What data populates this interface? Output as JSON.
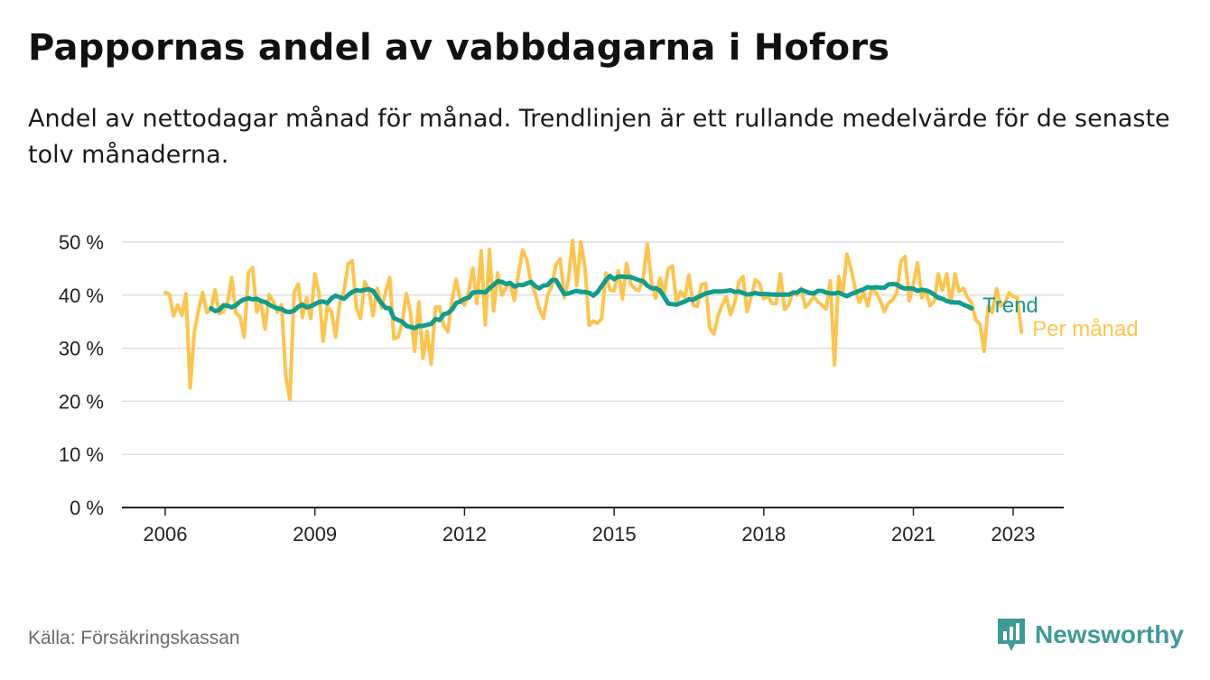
{
  "title": "Pappornas andel av vabbdagarna i Hofors",
  "subtitle": "Andel av nettodagar månad för månad. Trendlinjen är ett rullande medelvärde för de senaste tolv månaderna.",
  "source": "Källa: Försäkringskassan",
  "brand": {
    "name": "Newsworthy",
    "icon": "newsworthy-logo-icon"
  },
  "colors": {
    "trend": "#129c8e",
    "monthly": "#ffc44d",
    "axis": "#222222",
    "grid": "#dddddd",
    "brand": "#3f9a96"
  },
  "chart_data": {
    "type": "line",
    "x_axis": {
      "type": "time",
      "ticks": [
        "2006",
        "2009",
        "2012",
        "2015",
        "2018",
        "2021",
        "2023"
      ]
    },
    "y_axis": {
      "ylim": [
        0,
        50
      ],
      "ticks": [
        "0 %",
        "10 %",
        "20 %",
        "30 %",
        "40 %",
        "50 %"
      ]
    },
    "grid": true,
    "series": [
      {
        "name": "Per månad",
        "start": "2006-01",
        "values": [
          40.5,
          40.2,
          36.1,
          38.1,
          36.2,
          40.3,
          22.5,
          33.0,
          37.1,
          40.5,
          36.7,
          37.3,
          41.0,
          36.5,
          36.9,
          38.6,
          43.3,
          36.6,
          35.9,
          32.1,
          44.2,
          45.2,
          36.8,
          38.6,
          33.6,
          40.1,
          38.8,
          36.8,
          38.2,
          24.7,
          20.4,
          40.5,
          42.1,
          35.8,
          39.5,
          35.6,
          44.0,
          40.4,
          31.3,
          38.0,
          36.8,
          32.1,
          38.7,
          40.7,
          45.9,
          46.5,
          37.5,
          35.6,
          42.5,
          41.0,
          36.1,
          41.3,
          37.6,
          40.5,
          43.3,
          31.8,
          32.1,
          34.7,
          40.3,
          36.8,
          29.4,
          38.7,
          28.1,
          33.2,
          27.0,
          37.7,
          37.8,
          34.2,
          33.1,
          39.2,
          43.0,
          38.9,
          38.1,
          40.6,
          45.1,
          38.4,
          48.3,
          34.4,
          48.6,
          37.0,
          44.2,
          40.0,
          41.4,
          42.2,
          39.0,
          44.1,
          48.5,
          46.6,
          42.3,
          40.3,
          37.4,
          35.6,
          40.0,
          41.7,
          45.8,
          46.8,
          39.5,
          43.0,
          50.3,
          41.8,
          50.0,
          45.0,
          34.3,
          35.1,
          34.7,
          35.6,
          44.2,
          41.0,
          40.8,
          44.6,
          39.3,
          46.0,
          42.1,
          41.2,
          40.9,
          43.3,
          49.6,
          42.4,
          39.4,
          43.2,
          40.1,
          45.0,
          45.5,
          38.6,
          40.7,
          39.6,
          43.8,
          38.1,
          37.9,
          42.0,
          42.2,
          33.8,
          32.7,
          36.1,
          38.2,
          39.7,
          36.3,
          38.5,
          42.5,
          43.5,
          36.9,
          39.8,
          42.9,
          42.2,
          39.3,
          39.8,
          38.4,
          38.4,
          44.0,
          37.3,
          38.1,
          40.7,
          40.0,
          41.3,
          37.7,
          38.6,
          39.7,
          38.8,
          38.1,
          37.4,
          42.7,
          26.8,
          43.5,
          40.4,
          47.7,
          45.0,
          41.2,
          38.6,
          40.5,
          38.0,
          41.3,
          40.5,
          39.0,
          36.9,
          38.5,
          39.1,
          40.4,
          46.4,
          47.3,
          38.9,
          42.0,
          46.1,
          39.5,
          40.8,
          38.0,
          38.8,
          44.0,
          40.9,
          44.0,
          38.4,
          44.0,
          40.7,
          41.3,
          39.6,
          38.5,
          35.3,
          34.6,
          29.4,
          37.9,
          36.7,
          41.2,
          38.0,
          38.5,
          40.4,
          39.8,
          39.5,
          33.0
        ]
      },
      {
        "name": "Trend",
        "start": "2006-12",
        "values": [
          37.5,
          37.0,
          37.2,
          38.1,
          38.0,
          37.7,
          38.1,
          38.8,
          39.2,
          39.4,
          39.2,
          39.3,
          38.9,
          38.7,
          38.2,
          37.8,
          37.5,
          37.4,
          36.9,
          36.8,
          37.1,
          37.8,
          38.2,
          37.7,
          37.9,
          38.3,
          38.7,
          38.8,
          38.5,
          39.4,
          39.9,
          39.6,
          39.3,
          40.0,
          40.6,
          40.9,
          40.8,
          41.0,
          41.1,
          40.8,
          39.6,
          38.5,
          37.6,
          37.5,
          35.7,
          35.3,
          35.0,
          34.2,
          34.0,
          33.8,
          34.2,
          34.2,
          34.4,
          34.6,
          35.5,
          35.3,
          36.4,
          36.6,
          37.3,
          38.5,
          38.8,
          39.3,
          39.5,
          40.5,
          40.6,
          40.6,
          40.5,
          41.3,
          41.9,
          42.6,
          42.5,
          42.1,
          42.3,
          41.6,
          41.9,
          41.9,
          42.2,
          42.5,
          41.7,
          41.3,
          41.8,
          41.9,
          42.8,
          42.8,
          41.5,
          40.2,
          40.3,
          40.6,
          40.8,
          40.6,
          40.6,
          40.4,
          39.9,
          40.6,
          41.7,
          42.8,
          43.6,
          43.0,
          43.5,
          43.5,
          43.4,
          43.4,
          43.1,
          42.8,
          42.6,
          41.8,
          41.3,
          41.3,
          40.9,
          39.7,
          38.4,
          38.3,
          38.2,
          38.5,
          38.8,
          39.2,
          39.1,
          39.6,
          39.9,
          40.3,
          40.5,
          40.7,
          40.7,
          40.7,
          40.8,
          40.9,
          40.6,
          40.7,
          40.4,
          40.1,
          40.2,
          40.4,
          40.2,
          40.2,
          40.2,
          40.1,
          40.1,
          40.1,
          40.1,
          40.1,
          40.4,
          40.5,
          41.0,
          40.7,
          40.4,
          40.3,
          40.8,
          40.8,
          40.5,
          40.3,
          40.3,
          40.5,
          40.1,
          39.8,
          40.2,
          40.5,
          40.8,
          41.1,
          41.5,
          41.4,
          41.5,
          41.4,
          41.4,
          42.0,
          42.1,
          42.0,
          41.5,
          41.2,
          41.3,
          41.2,
          40.8,
          41.0,
          40.9,
          40.6,
          40.1,
          39.5,
          39.3,
          38.9,
          38.7,
          38.6,
          38.6,
          38.2,
          37.9,
          37.5
        ]
      }
    ]
  }
}
